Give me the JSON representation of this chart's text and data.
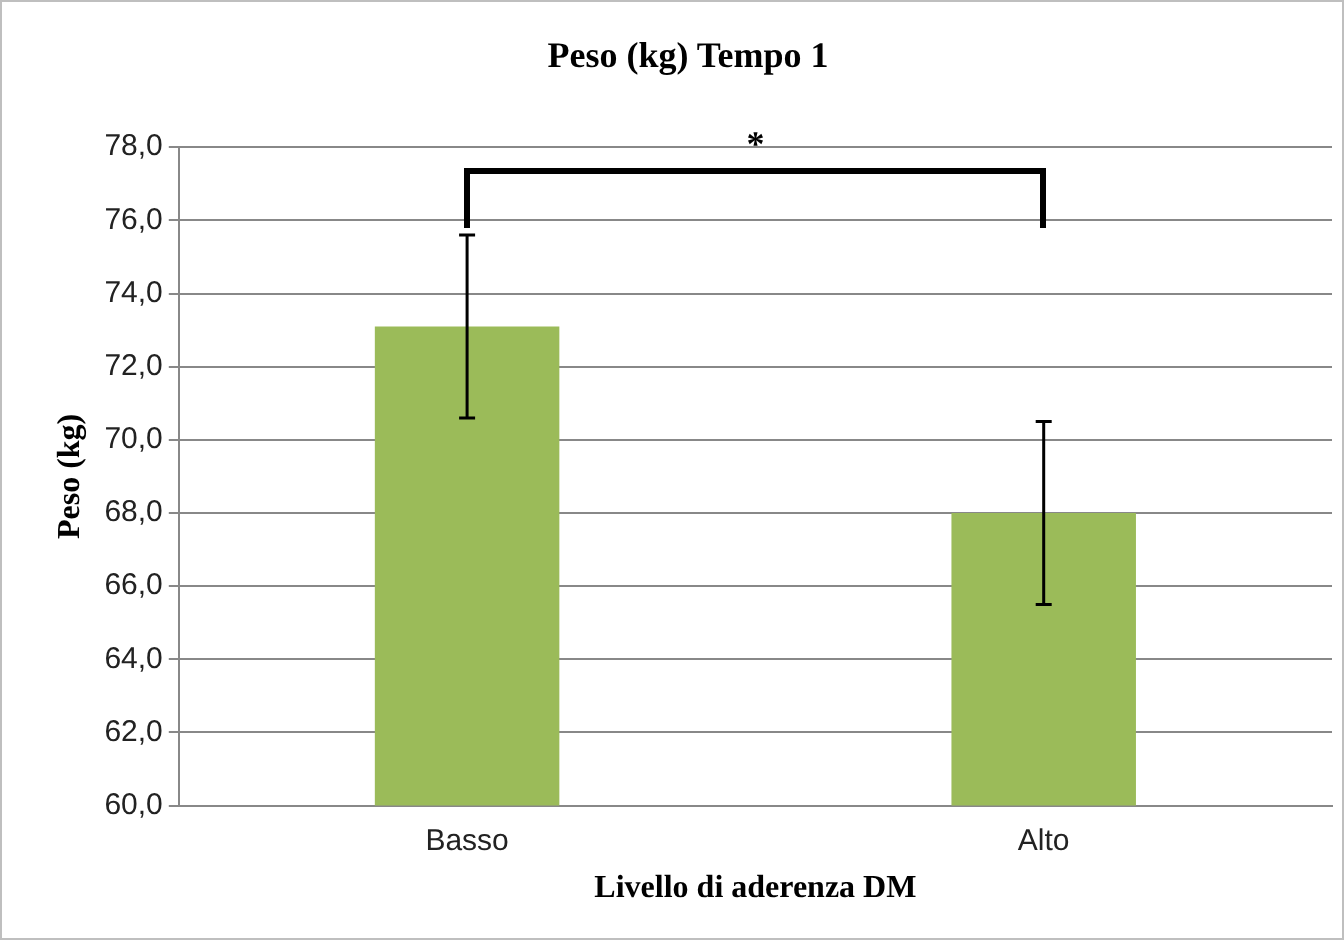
{
  "chart_data": {
    "type": "bar",
    "title": "Peso (kg) Tempo 1",
    "xlabel": "Livello di aderenza DM",
    "ylabel": "Peso (kg)",
    "categories": [
      "Basso",
      "Alto"
    ],
    "values": [
      73.1,
      68.0
    ],
    "errors": [
      2.5,
      2.5
    ],
    "color": "#9bbb59",
    "ylim": [
      60,
      78
    ],
    "yticks": [
      {
        "value": 60,
        "label": "60,0"
      },
      {
        "value": 62,
        "label": "62,0"
      },
      {
        "value": 64,
        "label": "64,0"
      },
      {
        "value": 66,
        "label": "66,0"
      },
      {
        "value": 68,
        "label": "68,0"
      },
      {
        "value": 70,
        "label": "70,0"
      },
      {
        "value": 72,
        "label": "72,0"
      },
      {
        "value": 74,
        "label": "74,0"
      },
      {
        "value": 76,
        "label": "76,0"
      },
      {
        "value": 78,
        "label": "78,0"
      }
    ],
    "grid": "y",
    "annotations": [
      "*"
    ]
  }
}
